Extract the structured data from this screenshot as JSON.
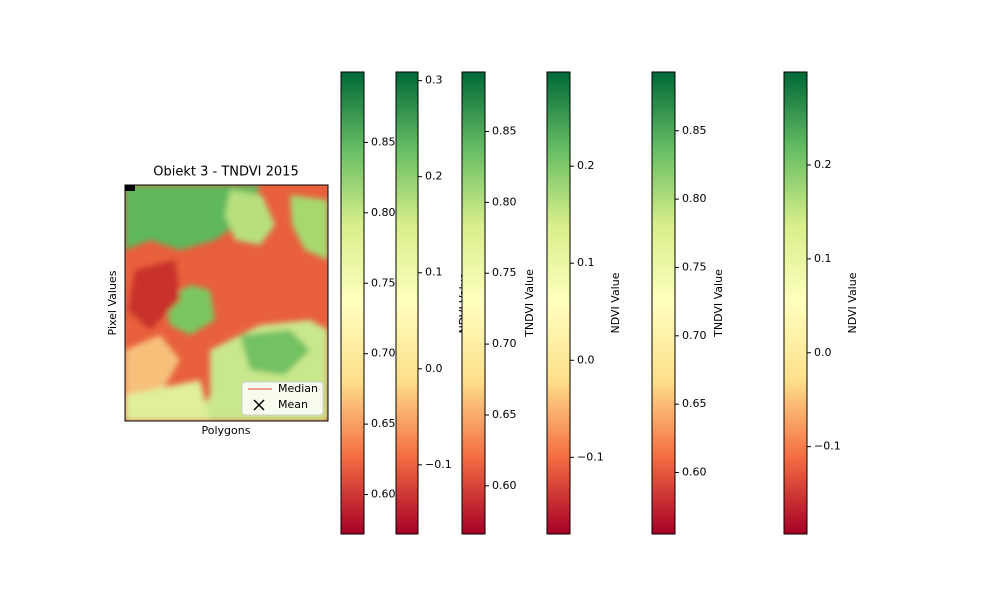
{
  "chart_data": [
    {
      "type": "image",
      "title": "Obiekt 3 - TNDVI 2015",
      "xlabel": "Polygons",
      "ylabel": "Pixel Values",
      "legend": "lower right",
      "series": [
        {
          "name": "Median",
          "color": "#e8423c",
          "marker": "line"
        },
        {
          "name": "Mean",
          "color": "#000000",
          "marker": "x"
        }
      ]
    },
    {
      "type": "colorbar",
      "label": "TNDVI Value",
      "ylim": [
        0.572,
        0.9
      ],
      "colors": [
        "#a50026",
        "#f46d43",
        "#fee08b",
        "#ffffbf",
        "#d9ef8b",
        "#66bd63",
        "#006837"
      ],
      "yticks": [
        {
          "value": 0.6,
          "label": "0.60"
        },
        0.65,
        {
          "value": 0.7,
          "label": "0.70"
        },
        0.75,
        {
          "value": 0.8,
          "label": "0.80"
        },
        0.85
      ]
    },
    {
      "type": "colorbar",
      "label": "NDVI Value",
      "ylim": [
        -0.172,
        0.309
      ],
      "colors": [
        "#a50026",
        "#f46d43",
        "#fee08b",
        "#ffffbf",
        "#d9ef8b",
        "#66bd63",
        "#006837"
      ],
      "yticks": [
        {
          "value": -0.1,
          "label": "−0.1"
        },
        {
          "value": 0,
          "label": "0.0"
        },
        0.1,
        0.2,
        0.3
      ]
    },
    {
      "type": "colorbar",
      "label": "TNDVI Value",
      "ylim": [
        0.566,
        0.892
      ],
      "colors": [
        "#a50026",
        "#f46d43",
        "#fee08b",
        "#ffffbf",
        "#d9ef8b",
        "#66bd63",
        "#006837"
      ],
      "yticks": [
        {
          "value": 0.6,
          "label": "0.60"
        },
        0.65,
        {
          "value": 0.7,
          "label": "0.70"
        },
        0.75,
        {
          "value": 0.8,
          "label": "0.80"
        },
        0.85
      ]
    },
    {
      "type": "colorbar",
      "label": "NDVI Value",
      "ylim": [
        -0.179,
        0.297
      ],
      "colors": [
        "#a50026",
        "#f46d43",
        "#fee08b",
        "#ffffbf",
        "#d9ef8b",
        "#66bd63",
        "#006837"
      ],
      "yticks": [
        {
          "value": -0.1,
          "label": "−0.1"
        },
        {
          "value": 0,
          "label": "0.0"
        },
        0.1,
        0.2
      ]
    },
    {
      "type": "colorbar",
      "label": "TNDVI Value",
      "ylim": [
        0.555,
        0.893
      ],
      "colors": [
        "#a50026",
        "#f46d43",
        "#fee08b",
        "#ffffbf",
        "#d9ef8b",
        "#66bd63",
        "#006837"
      ],
      "yticks": [
        {
          "value": 0.6,
          "label": "0.60"
        },
        0.65,
        {
          "value": 0.7,
          "label": "0.70"
        },
        0.75,
        {
          "value": 0.8,
          "label": "0.80"
        },
        0.85
      ]
    },
    {
      "type": "colorbar",
      "label": "NDVI Value",
      "ylim": [
        -0.193,
        0.299
      ],
      "colors": [
        "#a50026",
        "#f46d43",
        "#fee08b",
        "#ffffbf",
        "#d9ef8b",
        "#66bd63",
        "#006837"
      ],
      "yticks": [
        {
          "value": -0.1,
          "label": "−0.1"
        },
        {
          "value": 0,
          "label": "0.0"
        },
        0.1,
        0.2
      ]
    }
  ]
}
